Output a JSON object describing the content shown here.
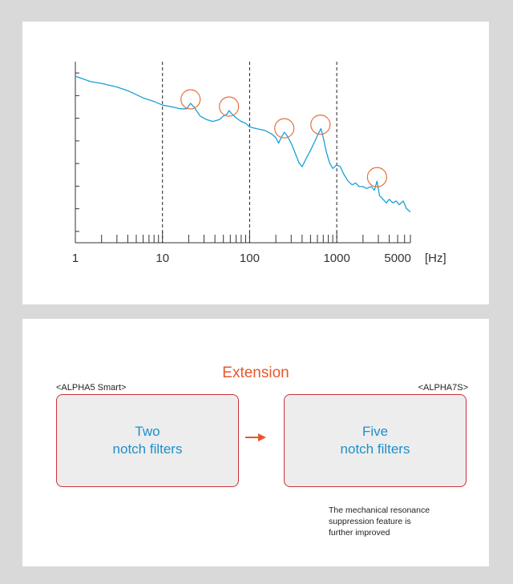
{
  "chart_data": {
    "type": "line",
    "xscale": "log",
    "xlim": [
      1,
      7000
    ],
    "x_ticks": [
      "1",
      "10",
      "100",
      "1000",
      "5000"
    ],
    "x_unit": "[Hz]",
    "y_ticks_count": 9,
    "y_labels_shown": false,
    "dashed_gridlines_at_x": [
      10,
      100,
      1000
    ],
    "series": [
      {
        "color": "#1a9fd6",
        "points": [
          [
            1,
            0.92
          ],
          [
            1.5,
            0.89
          ],
          [
            2,
            0.88
          ],
          [
            3,
            0.86
          ],
          [
            4,
            0.84
          ],
          [
            6,
            0.8
          ],
          [
            8,
            0.78
          ],
          [
            10,
            0.76
          ],
          [
            13,
            0.75
          ],
          [
            16,
            0.74
          ],
          [
            19,
            0.74
          ],
          [
            21,
            0.77
          ],
          [
            23,
            0.75
          ],
          [
            27,
            0.7
          ],
          [
            32,
            0.68
          ],
          [
            38,
            0.67
          ],
          [
            45,
            0.68
          ],
          [
            50,
            0.7
          ],
          [
            55,
            0.71
          ],
          [
            58,
            0.73
          ],
          [
            63,
            0.71
          ],
          [
            70,
            0.69
          ],
          [
            80,
            0.67
          ],
          [
            90,
            0.66
          ],
          [
            100,
            0.64
          ],
          [
            120,
            0.63
          ],
          [
            150,
            0.62
          ],
          [
            180,
            0.6
          ],
          [
            200,
            0.58
          ],
          [
            215,
            0.55
          ],
          [
            230,
            0.58
          ],
          [
            250,
            0.61
          ],
          [
            270,
            0.59
          ],
          [
            300,
            0.55
          ],
          [
            330,
            0.5
          ],
          [
            370,
            0.44
          ],
          [
            400,
            0.42
          ],
          [
            440,
            0.46
          ],
          [
            500,
            0.51
          ],
          [
            560,
            0.56
          ],
          [
            610,
            0.6
          ],
          [
            660,
            0.63
          ],
          [
            700,
            0.58
          ],
          [
            760,
            0.5
          ],
          [
            830,
            0.44
          ],
          [
            900,
            0.41
          ],
          [
            1000,
            0.43
          ],
          [
            1100,
            0.42
          ],
          [
            1200,
            0.38
          ],
          [
            1350,
            0.34
          ],
          [
            1500,
            0.32
          ],
          [
            1650,
            0.33
          ],
          [
            1800,
            0.31
          ],
          [
            2000,
            0.31
          ],
          [
            2200,
            0.3
          ],
          [
            2500,
            0.31
          ],
          [
            2700,
            0.29
          ],
          [
            2900,
            0.34
          ],
          [
            3100,
            0.26
          ],
          [
            3400,
            0.24
          ],
          [
            3700,
            0.22
          ],
          [
            4000,
            0.24
          ],
          [
            4400,
            0.22
          ],
          [
            4800,
            0.23
          ],
          [
            5200,
            0.21
          ],
          [
            5800,
            0.23
          ],
          [
            6300,
            0.19
          ],
          [
            7000,
            0.17
          ]
        ]
      }
    ],
    "highlighted_points": [
      [
        21,
        0.77
      ],
      [
        58,
        0.73
      ],
      [
        250,
        0.61
      ],
      [
        650,
        0.63
      ],
      [
        2900,
        0.34
      ]
    ],
    "highlight_color": "#e8713a",
    "axis_color": "#333333",
    "grid": false
  },
  "extension": {
    "title": "Extension",
    "from_tag": "<ALPHA5 Smart>",
    "to_tag": "<ALPHA7S>",
    "from_box": {
      "line1": "Two",
      "line2": "notch filters"
    },
    "to_box": {
      "line1": "Five",
      "line2": "notch filters"
    },
    "arrow_icon": "right-arrow-icon",
    "arrow_color": "#e8562a",
    "note": {
      "line1": "The mechanical resonance",
      "line2": "suppression feature is",
      "line3": "further improved"
    }
  }
}
